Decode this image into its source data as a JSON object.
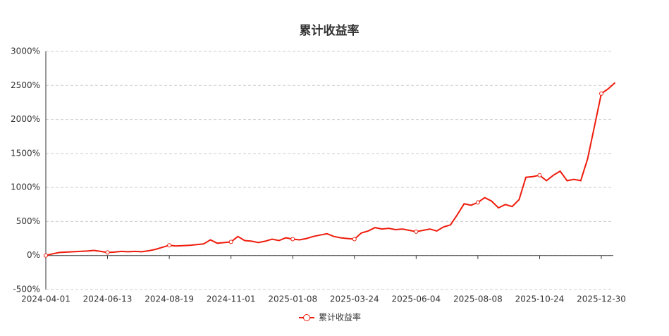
{
  "chart_data": {
    "type": "line",
    "title": "累计收益率",
    "categories": [
      "2024-04-01",
      null,
      null,
      null,
      null,
      null,
      null,
      null,
      null,
      "2024-06-13",
      null,
      null,
      null,
      null,
      null,
      null,
      null,
      null,
      "2024-08-19",
      null,
      null,
      null,
      null,
      null,
      null,
      null,
      null,
      "2024-11-01",
      null,
      null,
      null,
      null,
      null,
      null,
      null,
      null,
      "2025-01-08",
      null,
      null,
      null,
      null,
      null,
      null,
      null,
      null,
      "2025-03-24",
      null,
      null,
      null,
      null,
      null,
      null,
      null,
      null,
      "2025-06-04",
      null,
      null,
      null,
      null,
      null,
      null,
      null,
      null,
      "2025-08-08",
      null,
      null,
      null,
      null,
      null,
      null,
      null,
      null,
      "2025-10-24",
      null,
      null,
      null,
      null,
      null,
      null,
      null,
      null,
      "2025-12-30",
      null,
      null
    ],
    "series": [
      {
        "name": "累计收益率",
        "color": "#ee1c0c",
        "values": [
          0,
          25,
          45,
          50,
          55,
          60,
          65,
          75,
          60,
          45,
          50,
          60,
          55,
          60,
          55,
          70,
          90,
          120,
          150,
          140,
          145,
          150,
          160,
          170,
          230,
          180,
          190,
          200,
          280,
          220,
          210,
          190,
          210,
          240,
          220,
          260,
          240,
          230,
          250,
          280,
          300,
          320,
          280,
          260,
          250,
          240,
          330,
          360,
          410,
          390,
          400,
          380,
          390,
          370,
          350,
          370,
          390,
          360,
          420,
          450,
          600,
          760,
          740,
          780,
          850,
          800,
          700,
          750,
          720,
          820,
          1150,
          1160,
          1180,
          1100,
          1180,
          1240,
          1100,
          1120,
          1100,
          1420,
          1900,
          2380,
          2450,
          2540
        ]
      }
    ],
    "ylim": [
      -500,
      3000
    ],
    "yticks": [
      {
        "value": -500,
        "label": "-500%"
      },
      {
        "value": 0,
        "label": "0%"
      },
      {
        "value": 500,
        "label": "500%"
      },
      {
        "value": 1000,
        "label": "1000%"
      },
      {
        "value": 1500,
        "label": "1500%"
      },
      {
        "value": 2000,
        "label": "2000%"
      },
      {
        "value": 2500,
        "label": "2500%"
      },
      {
        "value": 3000,
        "label": "3000%"
      }
    ],
    "grid": true
  }
}
